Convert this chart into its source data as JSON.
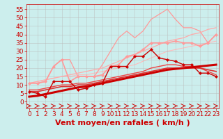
{
  "x": [
    0,
    1,
    2,
    3,
    4,
    5,
    6,
    7,
    8,
    9,
    10,
    11,
    12,
    13,
    14,
    15,
    16,
    17,
    18,
    19,
    20,
    21,
    22,
    23
  ],
  "background_color": "#cceeed",
  "grid_color": "#bbbbbb",
  "xlabel": "Vent moyen/en rafales ( km/h )",
  "ylim": [
    -4,
    58
  ],
  "xlim": [
    -0.3,
    23.3
  ],
  "yticks": [
    0,
    5,
    10,
    15,
    20,
    25,
    30,
    35,
    40,
    45,
    50,
    55
  ],
  "xticks": [
    0,
    1,
    2,
    3,
    4,
    5,
    6,
    7,
    8,
    9,
    10,
    11,
    12,
    13,
    14,
    15,
    16,
    17,
    18,
    19,
    20,
    21,
    22,
    23
  ],
  "lines": [
    {
      "y": [
        3,
        3.5,
        4.5,
        5.5,
        6.5,
        7.5,
        8.5,
        9,
        10,
        11,
        12,
        13,
        14,
        15,
        16,
        17,
        18,
        19,
        19.5,
        20,
        20.5,
        21,
        21.5,
        22
      ],
      "color": "#cc0000",
      "linewidth": 2.2,
      "marker": null,
      "markersize": 0,
      "zorder": 6,
      "linestyle": "-"
    },
    {
      "y": [
        6,
        5,
        3,
        12,
        12,
        12,
        7,
        8,
        10,
        11,
        21,
        21,
        21,
        27,
        27,
        31,
        26,
        25,
        24,
        22,
        22,
        17,
        17,
        15
      ],
      "color": "#cc0000",
      "linewidth": 1.0,
      "marker": "D",
      "markersize": 2,
      "zorder": 5,
      "linestyle": "-"
    },
    {
      "y": [
        6,
        6,
        7,
        8,
        9,
        9,
        10,
        10,
        11,
        12,
        13,
        14,
        15,
        16,
        17,
        18,
        19,
        20,
        20,
        20,
        20,
        20,
        19,
        18
      ],
      "color": "#dd3333",
      "linewidth": 1.2,
      "marker": null,
      "markersize": 0,
      "zorder": 4,
      "linestyle": "-"
    },
    {
      "y": [
        7,
        7,
        8,
        9,
        10,
        10,
        11,
        11,
        12,
        13,
        14,
        15,
        16,
        17,
        18,
        20,
        21,
        22,
        22,
        21,
        21,
        20,
        18,
        16
      ],
      "color": "#ee4444",
      "linewidth": 1.0,
      "marker": null,
      "markersize": 0,
      "zorder": 3,
      "linestyle": "-"
    },
    {
      "y": [
        11,
        11,
        12,
        21,
        25,
        12,
        15,
        15,
        15,
        16,
        21,
        22,
        27,
        28,
        31,
        35,
        35,
        35,
        36,
        35,
        35,
        33,
        35,
        40
      ],
      "color": "#ff9999",
      "linewidth": 1.2,
      "marker": "D",
      "markersize": 2,
      "zorder": 3,
      "linestyle": "-"
    },
    {
      "y": [
        11,
        11,
        12,
        21,
        25,
        25,
        15,
        15,
        15,
        22,
        30,
        38,
        42,
        38,
        42,
        49,
        52,
        55,
        49,
        44,
        44,
        42,
        35,
        40
      ],
      "color": "#ff9999",
      "linewidth": 0.9,
      "marker": null,
      "markersize": 0,
      "zorder": 2,
      "linestyle": "-"
    },
    {
      "y": [
        11,
        12,
        13,
        14,
        15,
        16,
        17,
        18,
        19,
        20,
        22,
        24,
        26,
        28,
        30,
        32,
        34,
        36,
        37,
        38,
        40,
        41,
        43,
        44
      ],
      "color": "#ffaaaa",
      "linewidth": 0.9,
      "marker": null,
      "markersize": 0,
      "zorder": 2,
      "linestyle": "-"
    },
    {
      "y": [
        11,
        12,
        13,
        14,
        15,
        15,
        16,
        16,
        17,
        18,
        19,
        20,
        21,
        22,
        24,
        26,
        28,
        30,
        31,
        32,
        33,
        34,
        35,
        36
      ],
      "color": "#ffbbbb",
      "linewidth": 0.8,
      "marker": null,
      "markersize": 0,
      "zorder": 1,
      "linestyle": "-"
    }
  ],
  "xlabel_color": "#cc0000",
  "xlabel_fontsize": 8,
  "tick_fontsize": 6.5,
  "tick_color": "#cc0000",
  "spine_color": "#cc0000"
}
